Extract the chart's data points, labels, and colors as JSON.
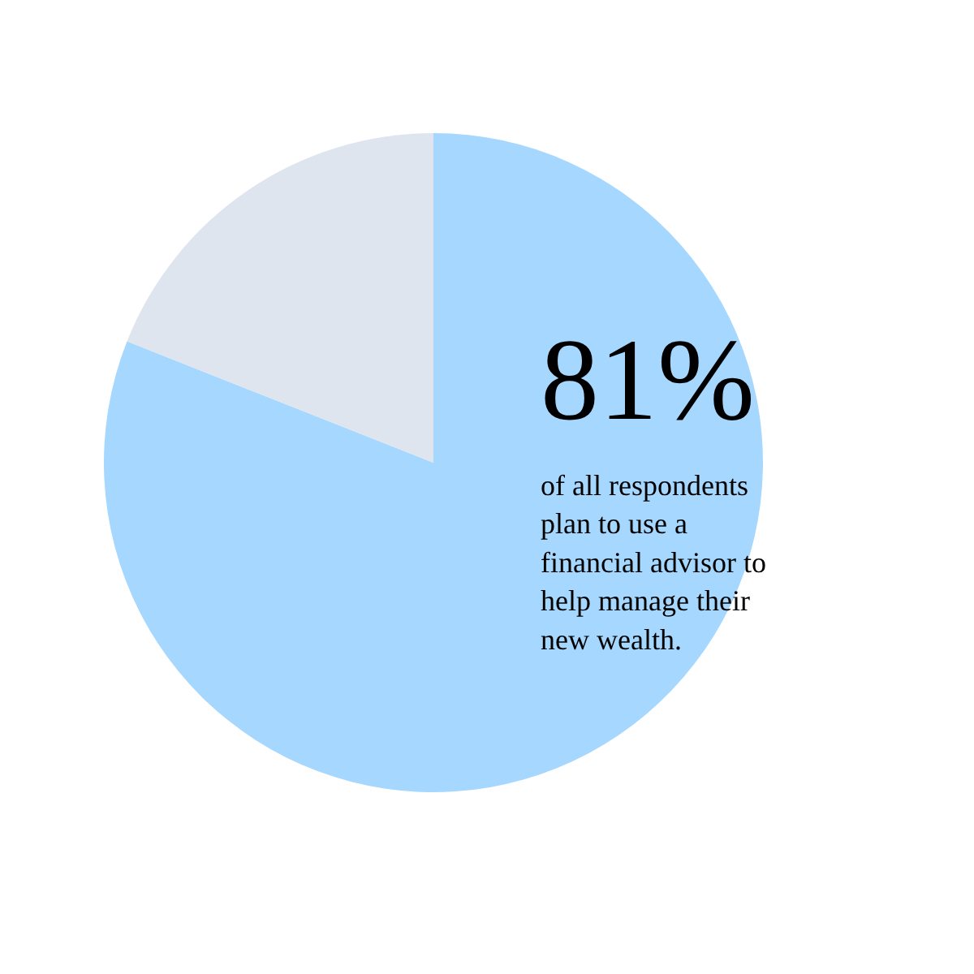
{
  "chart_data": {
    "type": "pie",
    "categories": [
      null,
      null
    ],
    "values": [
      81,
      19
    ],
    "colors": [
      "#a6d7fe",
      "#dfe5ee"
    ],
    "value_labels": [
      "81%",
      null
    ],
    "annotations": [
      "of all respondents plan to use a financial advisor to help manage their new wealth."
    ]
  }
}
